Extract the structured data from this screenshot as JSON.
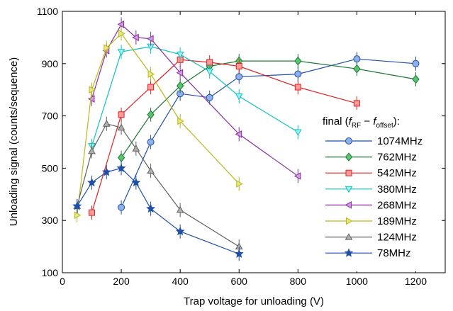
{
  "chart_data": {
    "type": "line",
    "title": "",
    "xlabel": "Trap voltage for unloading (V)",
    "ylabel": "Unloading signal (counts/sequence)",
    "xlim": [
      0,
      1300
    ],
    "ylim": [
      100,
      1100
    ],
    "xticks": [
      0,
      200,
      400,
      600,
      800,
      1000,
      1200
    ],
    "yticks": [
      100,
      300,
      500,
      700,
      900,
      1100
    ],
    "grid": false,
    "legend": {
      "placement": "right",
      "title_prefix": "final (",
      "title_f1": "f",
      "title_sub1": "RF",
      "title_minus": " − ",
      "title_f2": "f",
      "title_sub2": "offset",
      "title_suffix": "):"
    },
    "series": [
      {
        "name": "1074MHz",
        "color": "#1f4fa8",
        "fill": "#8fb0e8",
        "marker": "circle",
        "x": [
          200,
          300,
          400,
          500,
          600,
          800,
          1000,
          1200
        ],
        "y": [
          350,
          600,
          785,
          770,
          850,
          860,
          918,
          900
        ]
      },
      {
        "name": "762MHz",
        "color": "#1a7a35",
        "fill": "#5bc46e",
        "marker": "diamond",
        "x": [
          200,
          300,
          400,
          500,
          600,
          800,
          1000,
          1200
        ],
        "y": [
          540,
          705,
          815,
          890,
          910,
          910,
          880,
          840
        ]
      },
      {
        "name": "542MHz",
        "color": "#e02020",
        "fill": "#ff9a9a",
        "marker": "square",
        "x": [
          100,
          200,
          300,
          400,
          500,
          600,
          800,
          1000
        ],
        "y": [
          330,
          705,
          810,
          915,
          905,
          890,
          810,
          748
        ]
      },
      {
        "name": "380MHz",
        "color": "#10c0c0",
        "fill": "#9ef0f0",
        "marker": "triangle-down",
        "x": [
          100,
          200,
          300,
          400,
          500,
          600,
          800
        ],
        "y": [
          585,
          945,
          965,
          935,
          870,
          775,
          638
        ]
      },
      {
        "name": "268MHz",
        "color": "#8a30a0",
        "fill": "#cf9ae0",
        "marker": "triangle-left",
        "x": [
          100,
          150,
          200,
          250,
          300,
          400,
          600,
          800
        ],
        "y": [
          765,
          950,
          1050,
          1000,
          995,
          865,
          630,
          470
        ]
      },
      {
        "name": "189MHz",
        "color": "#b8b81c",
        "fill": "#e8e880",
        "marker": "triangle-right",
        "x": [
          50,
          100,
          150,
          200,
          300,
          400,
          600
        ],
        "y": [
          320,
          800,
          960,
          1015,
          860,
          680,
          440
        ]
      },
      {
        "name": "124MHz",
        "color": "#606060",
        "fill": "#b0b0b0",
        "marker": "triangle-up",
        "x": [
          50,
          100,
          150,
          200,
          250,
          300,
          400,
          600
        ],
        "y": [
          355,
          565,
          670,
          655,
          575,
          490,
          340,
          200
        ]
      },
      {
        "name": "78MHz",
        "color": "#1f4fa8",
        "fill": "#1f4fa8",
        "marker": "star",
        "x": [
          50,
          100,
          150,
          200,
          250,
          300,
          400,
          600
        ],
        "y": [
          355,
          445,
          485,
          500,
          445,
          345,
          258,
          172
        ]
      }
    ]
  }
}
